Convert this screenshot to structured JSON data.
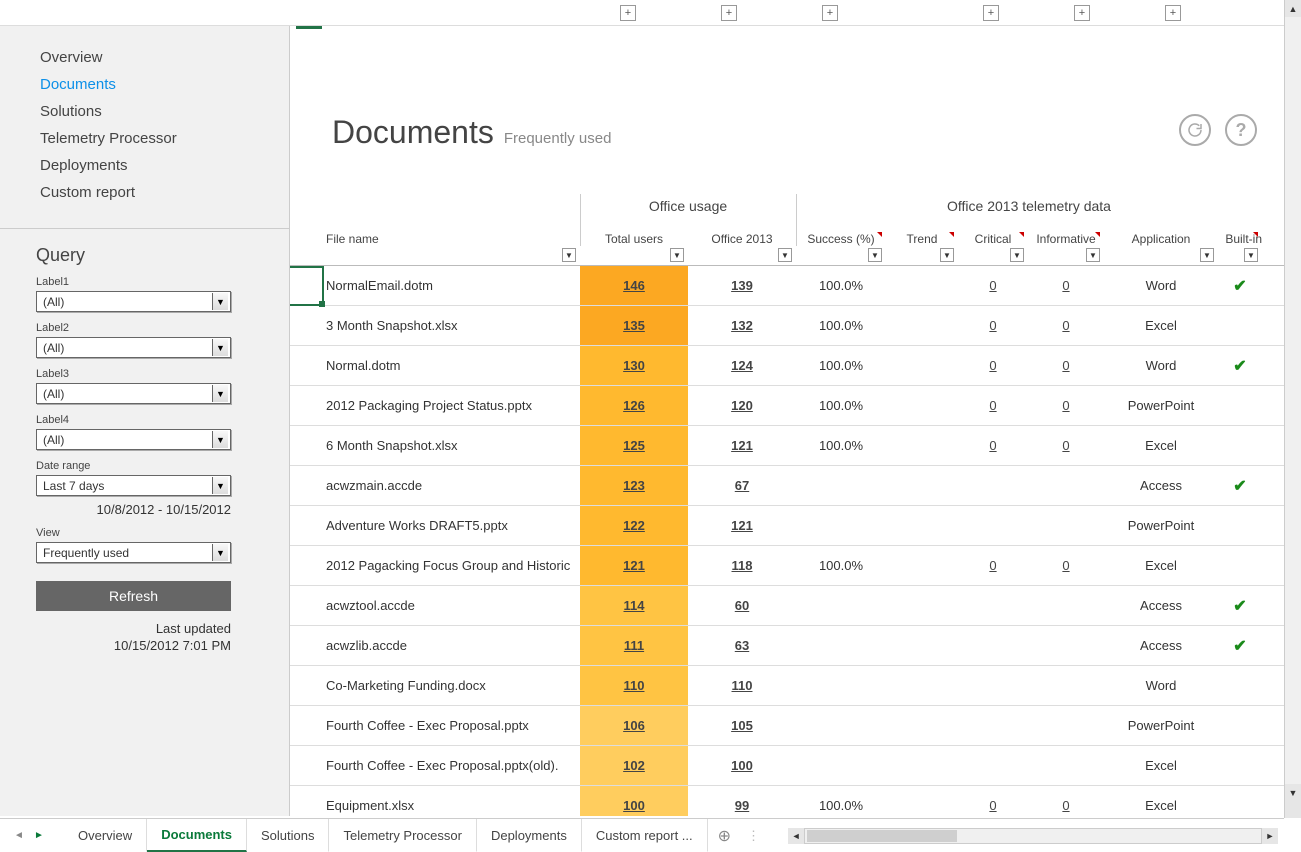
{
  "colors": {
    "accent_green": "#217346",
    "link_blue": "#0d90e8",
    "highlight_shades": [
      "#fca822",
      "#ffb92f",
      "#ffc443",
      "#ffcd5e"
    ],
    "check_green": "#1a8a1a"
  },
  "topbar": {
    "plus_count": 6
  },
  "nav": {
    "items": [
      "Overview",
      "Documents",
      "Solutions",
      "Telemetry Processor",
      "Deployments",
      "Custom report"
    ],
    "active_index": 1
  },
  "query": {
    "title": "Query",
    "labels": [
      "Label1",
      "Label2",
      "Label3",
      "Label4"
    ],
    "values": [
      "(All)",
      "(All)",
      "(All)",
      "(All)"
    ],
    "date_range_label": "Date range",
    "date_range_value": "Last 7 days",
    "date_range_text": "10/8/2012 - 10/15/2012",
    "view_label": "View",
    "view_value": "Frequently used",
    "refresh_label": "Refresh",
    "last_updated_label": "Last updated",
    "last_updated_value": "10/15/2012 7:01 PM"
  },
  "header": {
    "title": "Documents",
    "subtitle": "Frequently used"
  },
  "table": {
    "group_headers": {
      "usage": "Office usage",
      "telemetry": "Office 2013 telemetry data"
    },
    "columns": {
      "file_name": "File name",
      "total_users": "Total users",
      "office2013": "Office 2013",
      "success": "Success (%)",
      "trend": "Trend",
      "critical": "Critical",
      "informative": "Informative",
      "application": "Application",
      "builtin": "Built-in"
    },
    "shade_map": [
      "shade1",
      "shade1",
      "shade2",
      "shade2",
      "shade2",
      "shade2",
      "shade2",
      "shade2",
      "shade3",
      "shade3",
      "shade3",
      "shade4",
      "shade4",
      "shade4"
    ],
    "rows": [
      {
        "file": "NormalEmail.dotm",
        "tu": "146",
        "o13": "139",
        "suc": "100.0%",
        "cri": "0",
        "inf": "0",
        "app": "Word",
        "bi": true
      },
      {
        "file": "3 Month Snapshot.xlsx",
        "tu": "135",
        "o13": "132",
        "suc": "100.0%",
        "cri": "0",
        "inf": "0",
        "app": "Excel",
        "bi": false
      },
      {
        "file": "Normal.dotm",
        "tu": "130",
        "o13": "124",
        "suc": "100.0%",
        "cri": "0",
        "inf": "0",
        "app": "Word",
        "bi": true
      },
      {
        "file": "2012 Packaging Project Status.pptx",
        "tu": "126",
        "o13": "120",
        "suc": "100.0%",
        "cri": "0",
        "inf": "0",
        "app": "PowerPoint",
        "bi": false
      },
      {
        "file": "6 Month Snapshot.xlsx",
        "tu": "125",
        "o13": "121",
        "suc": "100.0%",
        "cri": "0",
        "inf": "0",
        "app": "Excel",
        "bi": false
      },
      {
        "file": "acwzmain.accde",
        "tu": "123",
        "o13": "67",
        "suc": "",
        "cri": "",
        "inf": "",
        "app": "Access",
        "bi": true
      },
      {
        "file": "Adventure Works DRAFT5.pptx",
        "tu": "122",
        "o13": "121",
        "suc": "",
        "cri": "",
        "inf": "",
        "app": "PowerPoint",
        "bi": false
      },
      {
        "file": "2012 Pagacking Focus Group and Historic",
        "tu": "121",
        "o13": "118",
        "suc": "100.0%",
        "cri": "0",
        "inf": "0",
        "app": "Excel",
        "bi": false
      },
      {
        "file": "acwztool.accde",
        "tu": "114",
        "o13": "60",
        "suc": "",
        "cri": "",
        "inf": "",
        "app": "Access",
        "bi": true
      },
      {
        "file": "acwzlib.accde",
        "tu": "111",
        "o13": "63",
        "suc": "",
        "cri": "",
        "inf": "",
        "app": "Access",
        "bi": true
      },
      {
        "file": "Co-Marketing Funding.docx",
        "tu": "110",
        "o13": "110",
        "suc": "",
        "cri": "",
        "inf": "",
        "app": "Word",
        "bi": false
      },
      {
        "file": "Fourth Coffee - Exec Proposal.pptx",
        "tu": "106",
        "o13": "105",
        "suc": "",
        "cri": "",
        "inf": "",
        "app": "PowerPoint",
        "bi": false
      },
      {
        "file": "Fourth Coffee - Exec Proposal.pptx(old).",
        "tu": "102",
        "o13": "100",
        "suc": "",
        "cri": "",
        "inf": "",
        "app": "Excel",
        "bi": false
      },
      {
        "file": "Equipment.xlsx",
        "tu": "100",
        "o13": "99",
        "suc": "100.0%",
        "cri": "0",
        "inf": "0",
        "app": "Excel",
        "bi": false
      }
    ]
  },
  "sheets": {
    "items": [
      "Overview",
      "Documents",
      "Solutions",
      "Telemetry Processor",
      "Deployments",
      "Custom report"
    ],
    "active_index": 1,
    "ellipsis": "..."
  }
}
